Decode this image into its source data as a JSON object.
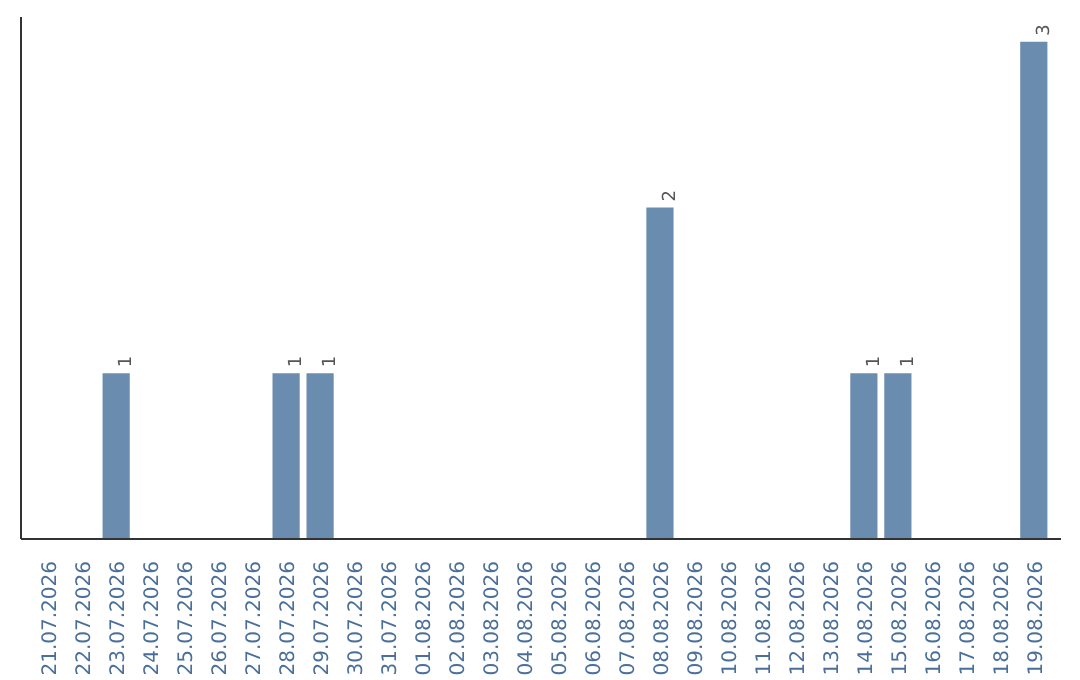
{
  "chart_data": {
    "type": "bar",
    "categories": [
      "21.07.2026",
      "22.07.2026",
      "23.07.2026",
      "24.07.2026",
      "25.07.2026",
      "26.07.2026",
      "27.07.2026",
      "28.07.2026",
      "29.07.2026",
      "30.07.2026",
      "31.07.2026",
      "01.08.2026",
      "02.08.2026",
      "03.08.2026",
      "04.08.2026",
      "05.08.2026",
      "06.08.2026",
      "07.08.2026",
      "08.08.2026",
      "09.08.2026",
      "10.08.2026",
      "11.08.2026",
      "12.08.2026",
      "13.08.2026",
      "14.08.2026",
      "15.08.2026",
      "16.08.2026",
      "17.08.2026",
      "18.08.2026",
      "19.08.2026"
    ],
    "values": [
      0,
      0,
      1,
      0,
      0,
      0,
      0,
      1,
      1,
      0,
      0,
      0,
      0,
      0,
      0,
      0,
      0,
      0,
      2,
      0,
      0,
      0,
      0,
      0,
      1,
      1,
      0,
      0,
      0,
      3
    ],
    "value_labels": [
      null,
      null,
      "1",
      null,
      null,
      null,
      null,
      "1",
      "1",
      null,
      null,
      null,
      null,
      null,
      null,
      null,
      null,
      null,
      "2",
      null,
      null,
      null,
      null,
      null,
      "1",
      "1",
      null,
      null,
      null,
      "3"
    ],
    "color": "#6a8caf",
    "tick_labels": "x",
    "grid": false
  }
}
